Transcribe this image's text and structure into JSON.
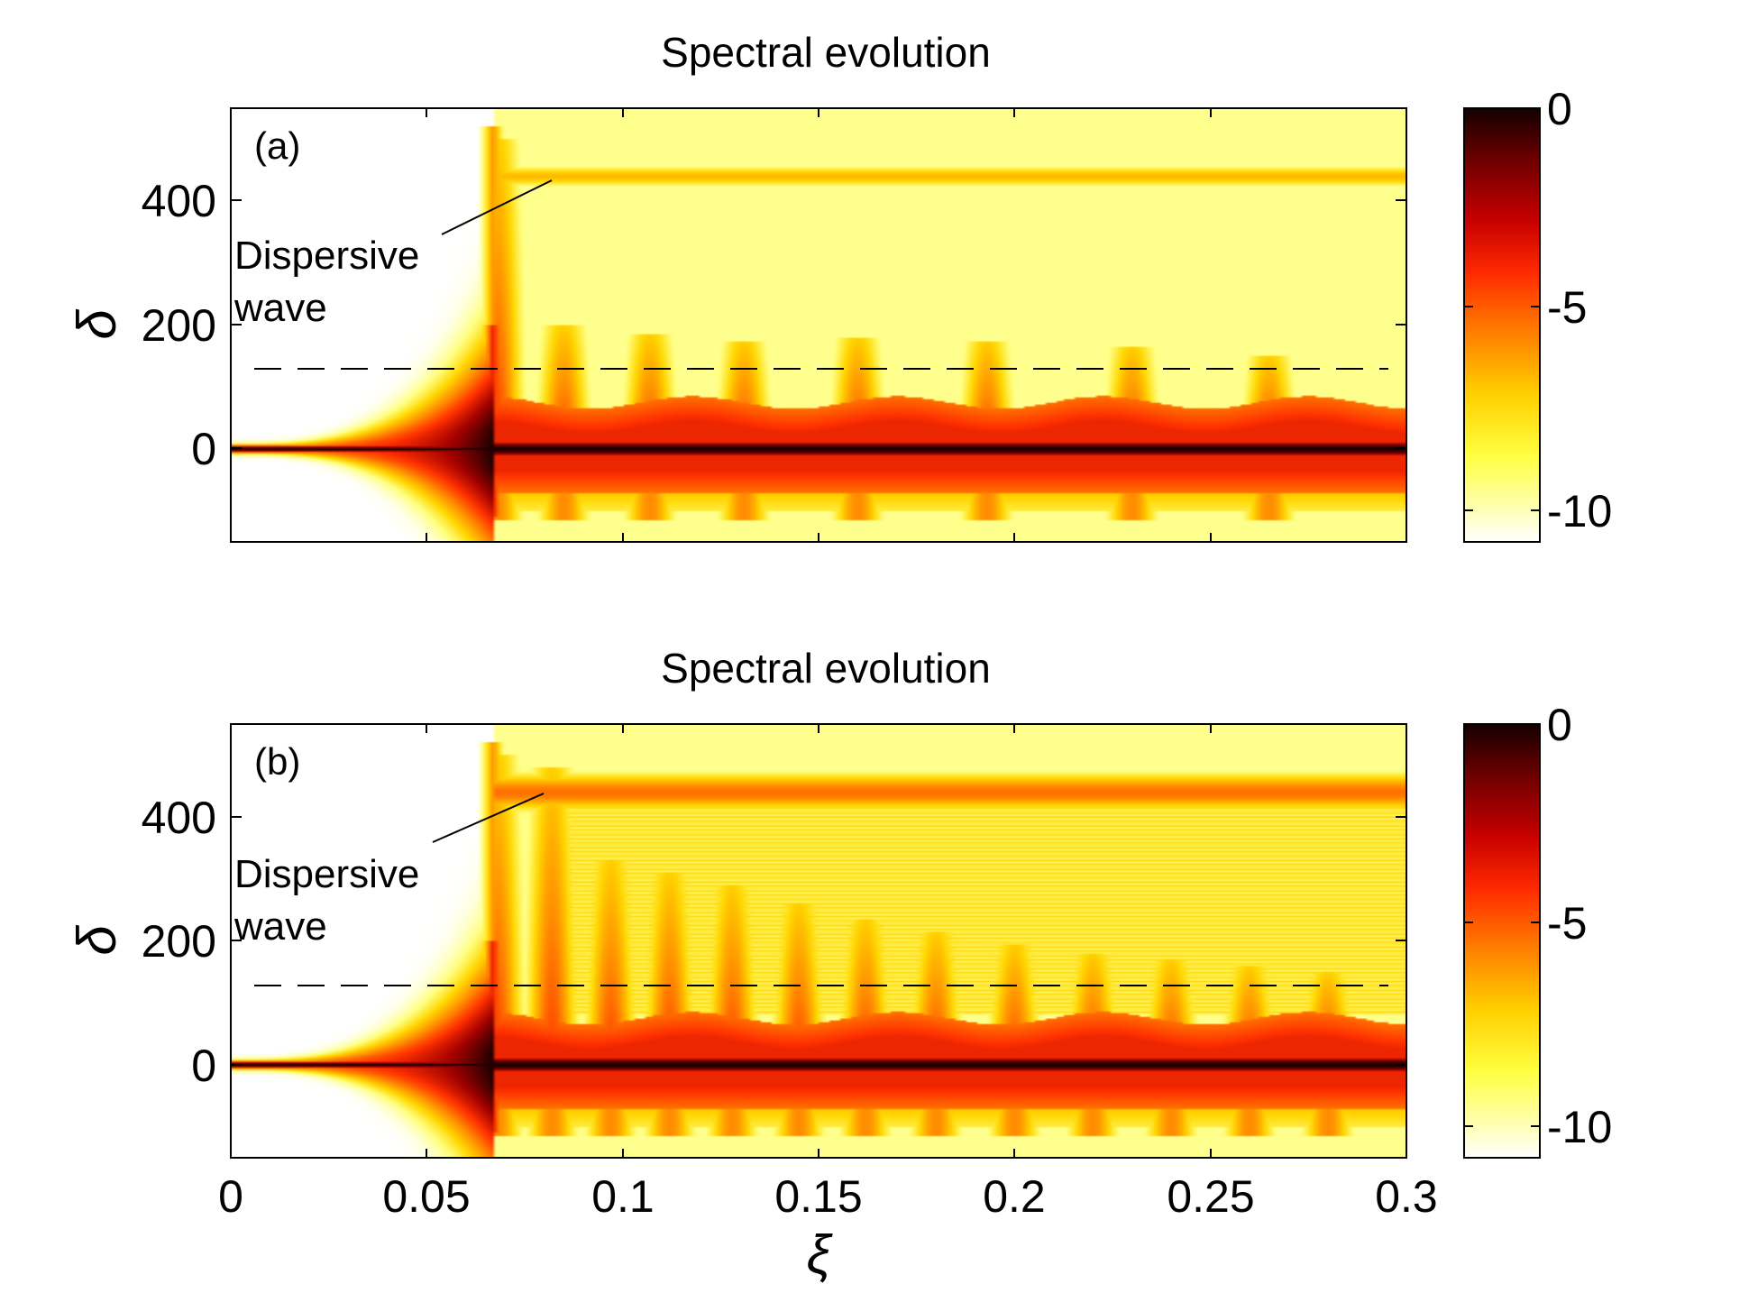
{
  "figure": {
    "panels": [
      {
        "id": "a",
        "title": "Spectral evolution",
        "label": "(a)",
        "annotation": [
          "Dispersive",
          "wave"
        ]
      },
      {
        "id": "b",
        "title": "Spectral evolution",
        "label": "(b)",
        "annotation": [
          "Dispersive",
          "wave"
        ]
      }
    ],
    "xlabel": "ξ",
    "ylabel": "δ"
  },
  "chart_data": [
    {
      "type": "heatmap",
      "title": "Spectral evolution",
      "panel_label": "(a)",
      "xlabel": "ξ",
      "ylabel": "δ",
      "xlim": [
        0,
        0.3
      ],
      "ylim": [
        -150,
        550
      ],
      "xticks": [
        0,
        0.05,
        0.1,
        0.15,
        0.2,
        0.25,
        0.3
      ],
      "xtick_labels_shown": false,
      "yticks": [
        0,
        200,
        400
      ],
      "colorbar": {
        "range": [
          -11,
          0
        ],
        "ticks": [
          0,
          -5,
          -10
        ],
        "colormap": "hot_reversed"
      },
      "colormap_stops": [
        "#ffffff",
        "#ffff80",
        "#ffd700",
        "#ff8c00",
        "#ff3000",
        "#a00000",
        "#1a0000"
      ],
      "dashed_line_delta": 125,
      "dispersive_wave_delta": 440,
      "dispersive_wave_onset_xi": 0.067,
      "modulation_peaks_xi": [
        0.068,
        0.085,
        0.107,
        0.131,
        0.16,
        0.193,
        0.23,
        0.265
      ],
      "modulation_peaks_delta": [
        500,
        200,
        185,
        175,
        180,
        175,
        165,
        150
      ],
      "lower_edge_delta": -100,
      "dw_residual_level": "weak",
      "annotation": {
        "text": "Dispersive wave",
        "points_to": [
          0.082,
          430
        ]
      }
    },
    {
      "type": "heatmap",
      "title": "Spectral evolution",
      "panel_label": "(b)",
      "xlabel": "ξ",
      "ylabel": "δ",
      "xlim": [
        0,
        0.3
      ],
      "ylim": [
        -150,
        550
      ],
      "xticks": [
        0,
        0.05,
        0.1,
        0.15,
        0.2,
        0.25,
        0.3
      ],
      "yticks": [
        0,
        200,
        400
      ],
      "colorbar": {
        "range": [
          -11,
          0
        ],
        "ticks": [
          0,
          -5,
          -10
        ],
        "colormap": "hot_reversed"
      },
      "colormap_stops": [
        "#ffffff",
        "#ffff80",
        "#ffd700",
        "#ff8c00",
        "#ff3000",
        "#a00000",
        "#1a0000"
      ],
      "dashed_line_delta": 125,
      "dispersive_wave_delta": 440,
      "dispersive_wave_onset_xi": 0.067,
      "modulation_peaks_xi": [
        0.068,
        0.082,
        0.097,
        0.112,
        0.128,
        0.145,
        0.162,
        0.18,
        0.2,
        0.22,
        0.24,
        0.26,
        0.28
      ],
      "modulation_peaks_delta": [
        500,
        480,
        330,
        310,
        290,
        260,
        235,
        215,
        195,
        180,
        170,
        160,
        150
      ],
      "lower_edge_delta": -100,
      "dw_residual_level": "strong",
      "annotation": {
        "text": "Dispersive wave",
        "points_to": [
          0.08,
          430
        ]
      }
    }
  ]
}
